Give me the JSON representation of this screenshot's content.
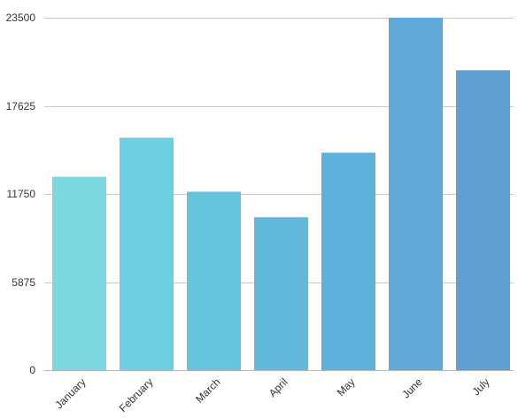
{
  "chart_data": {
    "type": "bar",
    "title": "",
    "xlabel": "",
    "ylabel": "",
    "categories": [
      "January",
      "February",
      "March",
      "April",
      "May",
      "June",
      "July"
    ],
    "values": [
      12900,
      15500,
      11900,
      10200,
      14500,
      23500,
      20000
    ],
    "ylim": [
      0,
      23500
    ],
    "yticks": [
      0,
      5875,
      11750,
      17625,
      23500
    ],
    "ytick_labels": [
      "0",
      "5875",
      "11750",
      "17625",
      "23500"
    ],
    "grid": true,
    "legend": "none",
    "bar_colors": [
      "#7bd8e0",
      "#6dcfe0",
      "#66c4dd",
      "#60b9db",
      "#5eb1da",
      "#5fa8d8",
      "#629fd2"
    ]
  }
}
